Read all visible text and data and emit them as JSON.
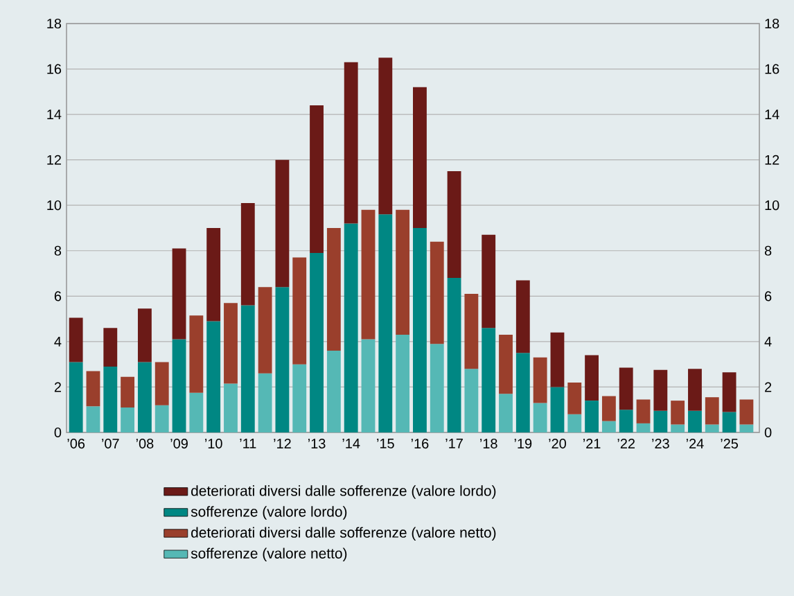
{
  "chart_data": {
    "type": "bar",
    "stacked": true,
    "categories": [
      "’06",
      null,
      "’07",
      null,
      "’08",
      null,
      "’09",
      null,
      "’10",
      null,
      "’11",
      null,
      "’12",
      null,
      "’13",
      null,
      "’14",
      null,
      "’15",
      null,
      "’16",
      null,
      "’17",
      null,
      "’18",
      null,
      "’19",
      null,
      "’20",
      null,
      "’21",
      null,
      "’22",
      null,
      "’23",
      null,
      "’24",
      null,
      "’25",
      null
    ],
    "series": [
      {
        "name": "sofferenze (valore netto)",
        "color": "#55b8b5",
        "values": [
          null,
          1.15,
          null,
          1.1,
          null,
          1.2,
          null,
          1.75,
          null,
          2.15,
          null,
          2.6,
          null,
          3.0,
          null,
          3.6,
          null,
          4.1,
          null,
          4.3,
          null,
          3.9,
          null,
          2.8,
          null,
          1.7,
          null,
          1.3,
          null,
          0.8,
          null,
          0.5,
          null,
          0.4,
          null,
          0.35,
          null,
          0.35,
          null,
          0.35
        ]
      },
      {
        "name": "deteriorati diversi dalle sofferenze (valore netto)",
        "color": "#9a3f2c",
        "values": [
          null,
          1.55,
          null,
          1.35,
          null,
          1.9,
          null,
          3.4,
          null,
          3.55,
          null,
          3.8,
          null,
          4.7,
          null,
          5.4,
          null,
          5.7,
          null,
          5.5,
          null,
          4.5,
          null,
          3.3,
          null,
          2.6,
          null,
          2.0,
          null,
          1.4,
          null,
          1.1,
          null,
          1.05,
          null,
          1.05,
          null,
          1.2,
          null,
          1.1
        ]
      },
      {
        "name": "sofferenze (valore lordo)",
        "color": "#008783",
        "values": [
          3.1,
          null,
          2.9,
          null,
          3.1,
          null,
          4.1,
          null,
          4.9,
          null,
          5.6,
          null,
          6.4,
          null,
          7.9,
          null,
          9.2,
          null,
          9.6,
          null,
          9.0,
          null,
          6.8,
          null,
          4.6,
          null,
          3.5,
          null,
          2.0,
          null,
          1.4,
          null,
          1.0,
          null,
          0.95,
          null,
          0.95,
          null,
          0.9,
          null
        ]
      },
      {
        "name": "deteriorati diversi dalle sofferenze (valore lordo)",
        "color": "#6b1a17",
        "values": [
          1.95,
          null,
          1.7,
          null,
          2.35,
          null,
          4.0,
          null,
          4.1,
          null,
          4.5,
          null,
          5.6,
          null,
          6.5,
          null,
          7.1,
          null,
          6.9,
          null,
          6.2,
          null,
          4.7,
          null,
          4.1,
          null,
          3.2,
          null,
          2.4,
          null,
          2.0,
          null,
          1.85,
          null,
          1.8,
          null,
          1.85,
          null,
          1.75,
          null
        ]
      }
    ],
    "ylim": [
      0,
      18
    ],
    "yticks": [
      0,
      2,
      4,
      6,
      8,
      10,
      12,
      14,
      16,
      18
    ],
    "y2lim": [
      0,
      18
    ],
    "y2ticks": [
      0,
      2,
      4,
      6,
      8,
      10,
      12,
      14,
      16,
      18
    ],
    "grid": "y",
    "legend": "bottom"
  }
}
